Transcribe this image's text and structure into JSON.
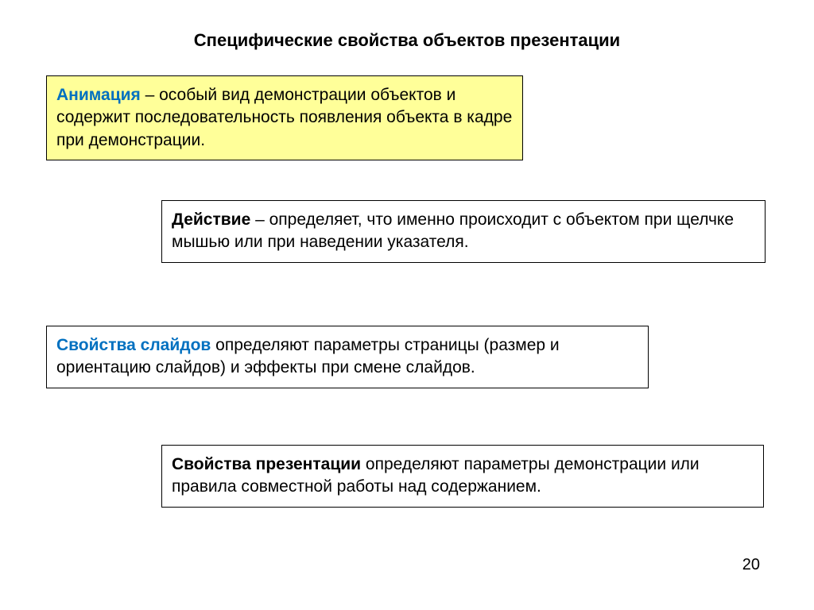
{
  "title": "Специфические свойства объектов презентации",
  "boxes": {
    "b1": {
      "term": "Анимация",
      "text": " – особый вид демонстрации объектов и содержит последовательность появления объекта в кадре при демонстрации."
    },
    "b2": {
      "term": "Действие",
      "text": " – определяет, что именно происходит с объектом при щелчке мышью или при наведении указателя."
    },
    "b3": {
      "term": "Свойства слайдов",
      "text": " определяют параметры страницы (размер и ориентацию слайдов) и эффекты при смене слайдов."
    },
    "b4": {
      "term": "Свойства презентации",
      "text": " определяют параметры демонстрации или правила совместной работы над содержанием."
    }
  },
  "pageNumber": "20",
  "colors": {
    "highlight_bg": "#ffff99",
    "term_color": "#0070c0",
    "text_color": "#000000",
    "border_color": "#000000",
    "background": "#ffffff"
  }
}
